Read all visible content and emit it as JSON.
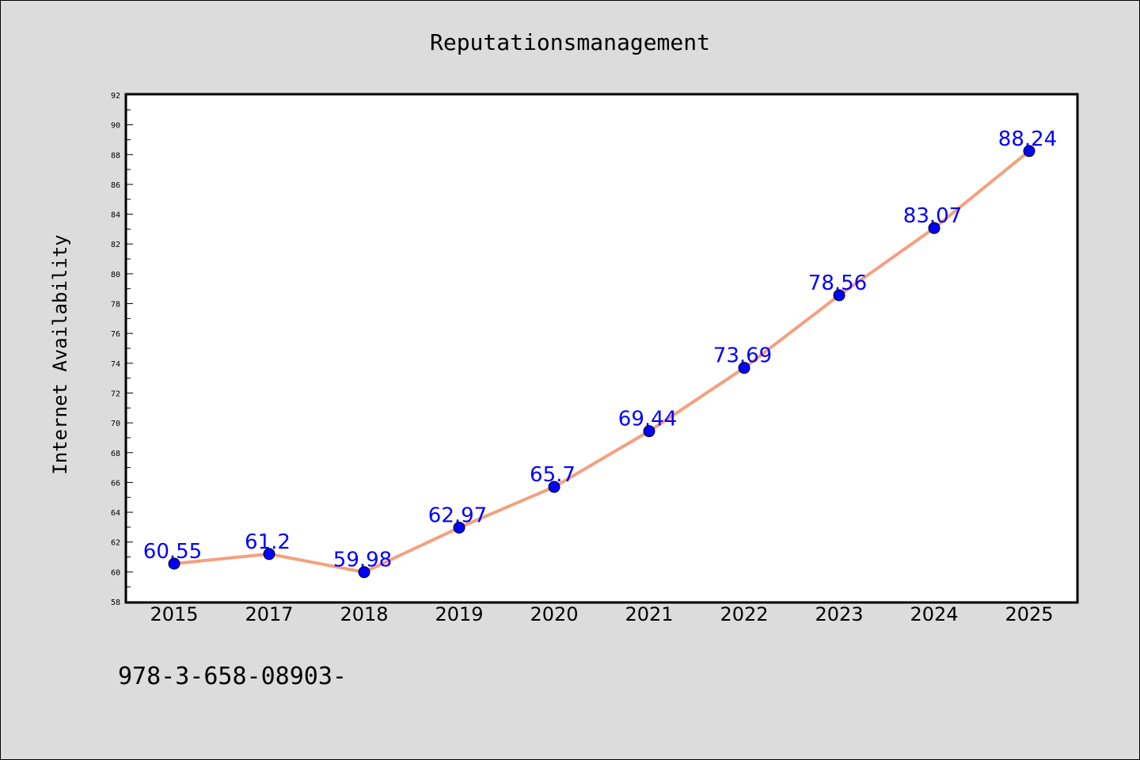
{
  "chart_data": {
    "type": "line",
    "title": "Reputationsmanagement",
    "xlabel": "",
    "ylabel": "Internet Availability",
    "categories": [
      "2015",
      "2017",
      "2018",
      "2019",
      "2020",
      "2021",
      "2022",
      "2023",
      "2024",
      "2025"
    ],
    "series": [
      {
        "values": [
          60.55,
          61.2,
          59.98,
          62.97,
          65.7,
          69.44,
          73.69,
          78.56,
          83.07,
          88.24
        ],
        "data_labels": [
          "60.55",
          "61.2",
          "59.98",
          "62.97",
          "65.7",
          "69.44",
          "73.69",
          "78.56",
          "83.07",
          "88.24"
        ]
      }
    ],
    "ylim": [
      58,
      92
    ],
    "yticks": [
      "58",
      "60",
      "62",
      "64",
      "66",
      "68",
      "70",
      "72",
      "74",
      "76",
      "78",
      "80",
      "82",
      "84",
      "86",
      "88",
      "90",
      "92"
    ],
    "grid": false,
    "legend": "none",
    "colors": {
      "line": "#f4a07f",
      "marker": "#0000ff",
      "data_label": "#0000ff",
      "background": "#dcdcdc",
      "plot_background": "#ffffff"
    }
  },
  "footnote": "978-3-658-08903-"
}
